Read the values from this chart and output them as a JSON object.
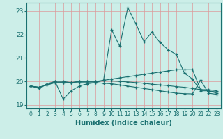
{
  "xlabel": "Humidex (Indice chaleur)",
  "ylabel": "",
  "xlim": [
    -0.5,
    23.5
  ],
  "ylim": [
    18.85,
    23.35
  ],
  "yticks": [
    19,
    20,
    21,
    22,
    23
  ],
  "xticks": [
    0,
    1,
    2,
    3,
    4,
    5,
    6,
    7,
    8,
    9,
    10,
    11,
    12,
    13,
    14,
    15,
    16,
    17,
    18,
    19,
    20,
    21,
    22,
    23
  ],
  "bg_color": "#cceee8",
  "grid_color": "#dd9999",
  "line_color": "#1a7070",
  "series": [
    {
      "x": [
        0,
        1,
        2,
        3,
        4,
        5,
        6,
        7,
        8,
        9,
        10,
        11,
        12,
        13,
        14,
        15,
        16,
        17,
        18,
        19,
        20,
        21,
        22,
        23
      ],
      "y": [
        19.8,
        19.7,
        19.9,
        20.0,
        19.25,
        19.6,
        19.8,
        19.9,
        19.95,
        20.05,
        22.2,
        21.5,
        23.15,
        22.45,
        21.7,
        22.1,
        21.65,
        21.35,
        21.15,
        20.35,
        20.1,
        19.6,
        19.6,
        19.55
      ],
      "marker": "+"
    },
    {
      "x": [
        0,
        1,
        2,
        3,
        4,
        5,
        6,
        7,
        8,
        9,
        10,
        11,
        12,
        13,
        14,
        15,
        16,
        17,
        18,
        19,
        20,
        21,
        22,
        23
      ],
      "y": [
        19.8,
        19.75,
        19.85,
        19.95,
        19.95,
        19.95,
        20.0,
        20.0,
        20.0,
        20.05,
        20.1,
        20.15,
        20.2,
        20.25,
        20.3,
        20.35,
        20.4,
        20.45,
        20.5,
        20.5,
        20.5,
        19.65,
        19.65,
        19.6
      ],
      "marker": "+"
    },
    {
      "x": [
        0,
        1,
        2,
        3,
        4,
        5,
        6,
        7,
        8,
        9,
        10,
        11,
        12,
        13,
        14,
        15,
        16,
        17,
        18,
        19,
        20,
        21,
        22,
        23
      ],
      "y": [
        19.8,
        19.75,
        19.85,
        19.95,
        19.95,
        19.95,
        20.0,
        20.0,
        20.0,
        20.02,
        20.02,
        20.0,
        19.98,
        19.95,
        19.92,
        19.88,
        19.85,
        19.82,
        19.78,
        19.75,
        19.7,
        19.65,
        19.6,
        19.5
      ],
      "marker": "+"
    },
    {
      "x": [
        0,
        1,
        2,
        3,
        4,
        5,
        6,
        7,
        8,
        9,
        10,
        11,
        12,
        13,
        14,
        15,
        16,
        17,
        18,
        19,
        20,
        21,
        22,
        23
      ],
      "y": [
        19.8,
        19.75,
        19.85,
        20.0,
        20.0,
        19.95,
        19.95,
        19.95,
        19.95,
        19.92,
        19.9,
        19.85,
        19.8,
        19.75,
        19.7,
        19.65,
        19.6,
        19.55,
        19.5,
        19.48,
        19.47,
        20.05,
        19.5,
        19.45
      ],
      "marker": "+"
    }
  ]
}
